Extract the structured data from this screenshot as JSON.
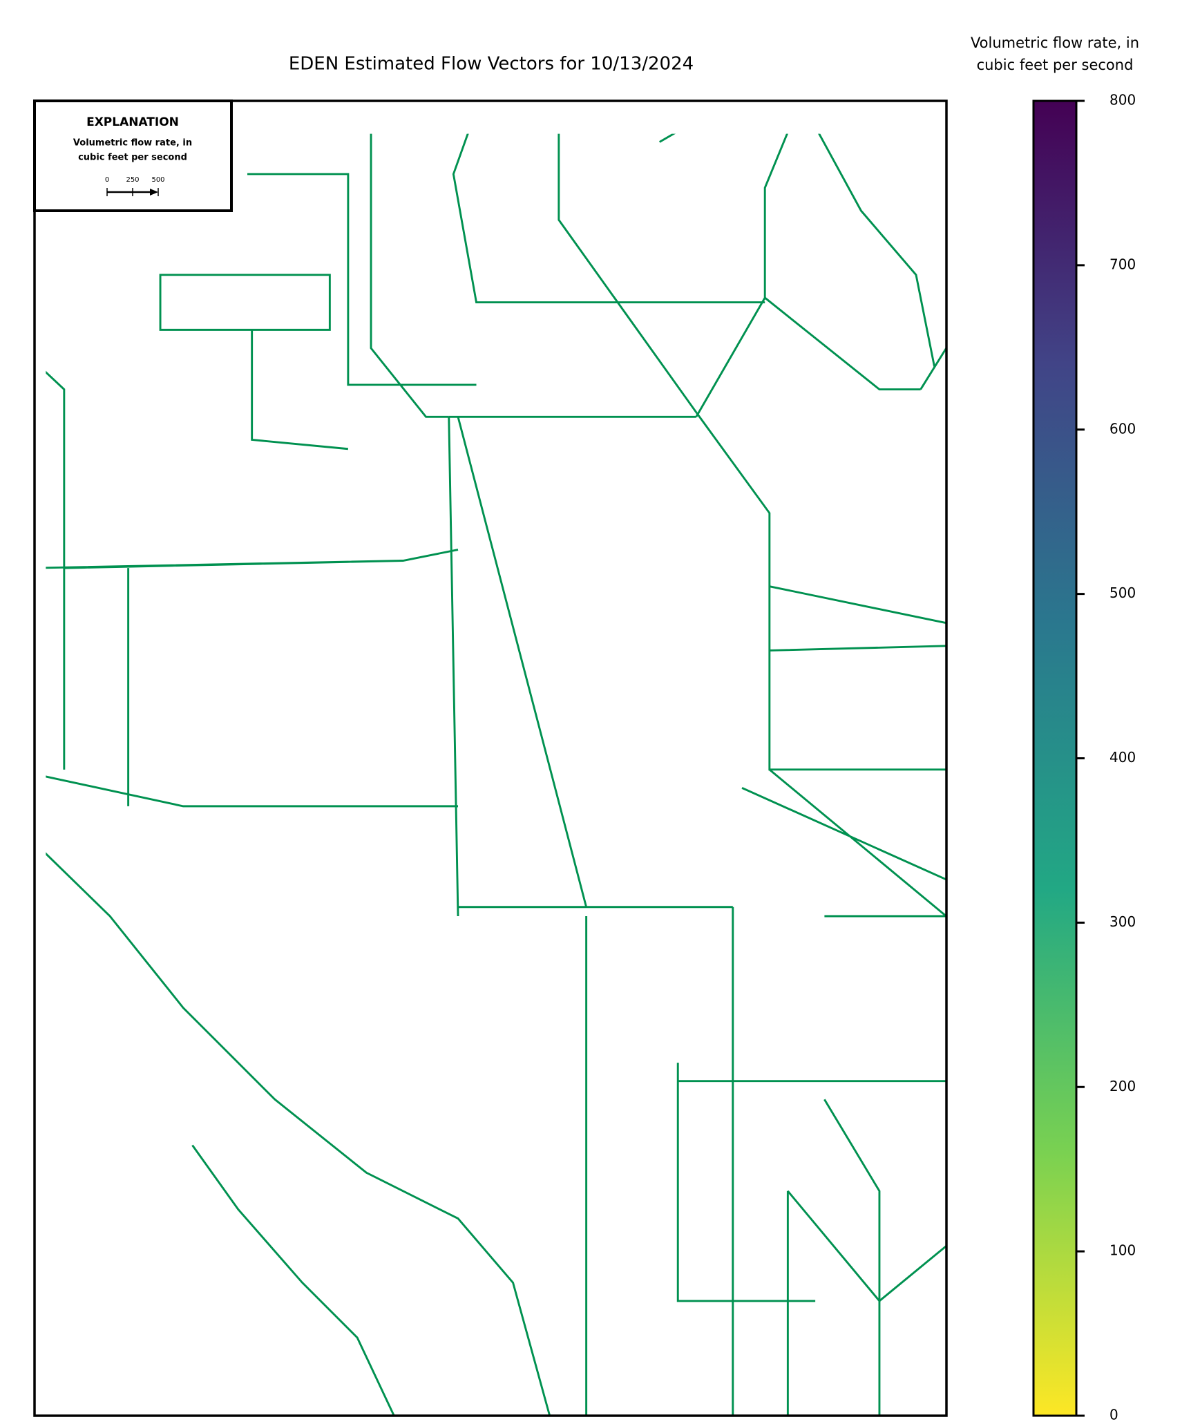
{
  "title": "EDEN Estimated Flow Vectors for 10/13/2024",
  "explanation": {
    "title": "EXPLANATION",
    "label": [
      "Volumetric flow rate, in",
      "cubic feet per second"
    ],
    "scale_ticks": [
      0,
      250,
      500
    ]
  },
  "colorbar": {
    "label": [
      "Volumetric flow rate, in",
      "cubic feet per second"
    ],
    "lim": [
      0,
      800
    ],
    "ticks": [
      0,
      100,
      200,
      300,
      400,
      500,
      600,
      700,
      800
    ],
    "colors": [
      "#fde725",
      "#7ad151",
      "#22a884",
      "#2a788e",
      "#414487",
      "#440154"
    ]
  }
}
